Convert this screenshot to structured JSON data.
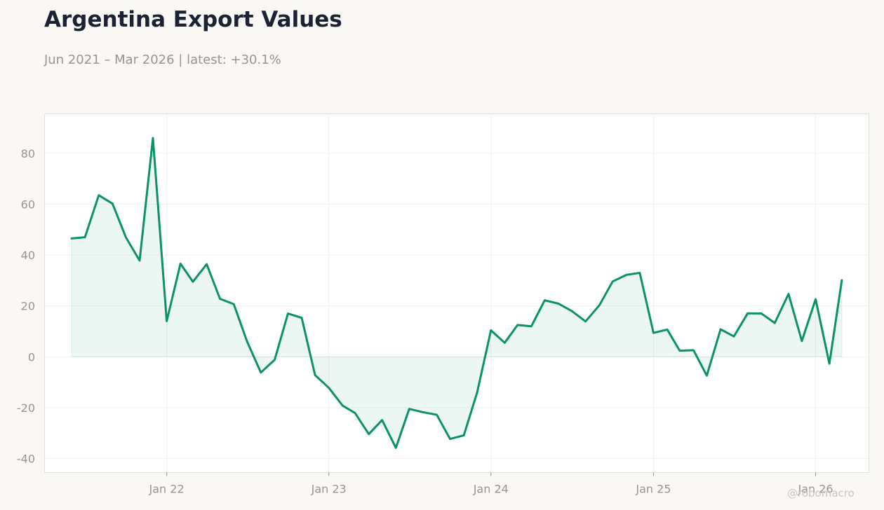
{
  "page": {
    "title": "Argentina Export Values",
    "subtitle": "Jun 2021 – Mar 2026 | latest: +30.1%",
    "watermark": "@robomacro"
  },
  "colors": {
    "background": "#f9f8f5",
    "line": "#0b9268",
    "fill": "#0b9268",
    "grid": "#efeeeb",
    "axis_frame": "#e2e0da",
    "tick_text": "#999590",
    "title": "#1b2233"
  },
  "chart_data": {
    "type": "line",
    "title": "Argentina Export Values",
    "subtitle": "Jun 2021 – Mar 2026 | latest: +30.1%",
    "xlabel": "",
    "ylabel": "",
    "grid": true,
    "area_fill_to_zero": true,
    "x_range": [
      "2021-04-01",
      "2026-05-01"
    ],
    "ylim": [
      -45.5,
      95.5
    ],
    "yticks": [
      -40,
      -20,
      0,
      20,
      40,
      60,
      80
    ],
    "xticks": [
      {
        "date": "2022-01-01",
        "label": "Jan 22"
      },
      {
        "date": "2023-01-01",
        "label": "Jan 23"
      },
      {
        "date": "2024-01-01",
        "label": "Jan 24"
      },
      {
        "date": "2025-01-01",
        "label": "Jan 25"
      },
      {
        "date": "2026-01-01",
        "label": "Jan 26"
      }
    ],
    "series": [
      {
        "x": [
          "2021-06",
          "2021-07",
          "2021-08",
          "2021-09",
          "2021-10",
          "2021-11",
          "2021-12",
          "2022-01",
          "2022-02",
          "2022-03",
          "2022-04",
          "2022-05",
          "2022-06",
          "2022-07",
          "2022-08",
          "2022-09",
          "2022-10",
          "2022-11",
          "2022-12",
          "2023-01",
          "2023-02",
          "2023-03",
          "2023-04",
          "2023-05",
          "2023-06",
          "2023-07",
          "2023-08",
          "2023-09",
          "2023-10",
          "2023-11",
          "2023-12",
          "2024-01",
          "2024-02",
          "2024-03",
          "2024-04",
          "2024-05",
          "2024-06",
          "2024-07",
          "2024-08",
          "2024-09",
          "2024-10",
          "2024-11",
          "2024-12",
          "2025-01",
          "2025-02",
          "2025-03",
          "2025-04",
          "2025-05",
          "2025-06",
          "2025-07",
          "2025-08",
          "2025-09",
          "2025-10",
          "2025-11",
          "2025-12",
          "2026-01",
          "2026-02",
          "2026-03"
        ],
        "values": [
          46.5,
          47.0,
          63.5,
          60.2,
          47.0,
          37.8,
          86.0,
          14.0,
          36.6,
          29.5,
          36.4,
          22.8,
          20.7,
          6.0,
          -6.2,
          -1.2,
          17.0,
          15.3,
          -7.2,
          -12.2,
          -19.2,
          -22.1,
          -30.4,
          -24.9,
          -35.8,
          -20.5,
          -21.8,
          -22.8,
          -32.3,
          -30.9,
          -14.0,
          10.4,
          5.5,
          12.5,
          12.0,
          22.2,
          20.9,
          18.0,
          13.9,
          20.2,
          29.6,
          32.2,
          33.0,
          9.4,
          10.7,
          2.4,
          2.6,
          -7.4,
          10.8,
          8.0,
          17.1,
          17.0,
          13.3,
          24.7,
          6.2,
          22.6,
          -2.7,
          30.1
        ]
      }
    ]
  }
}
